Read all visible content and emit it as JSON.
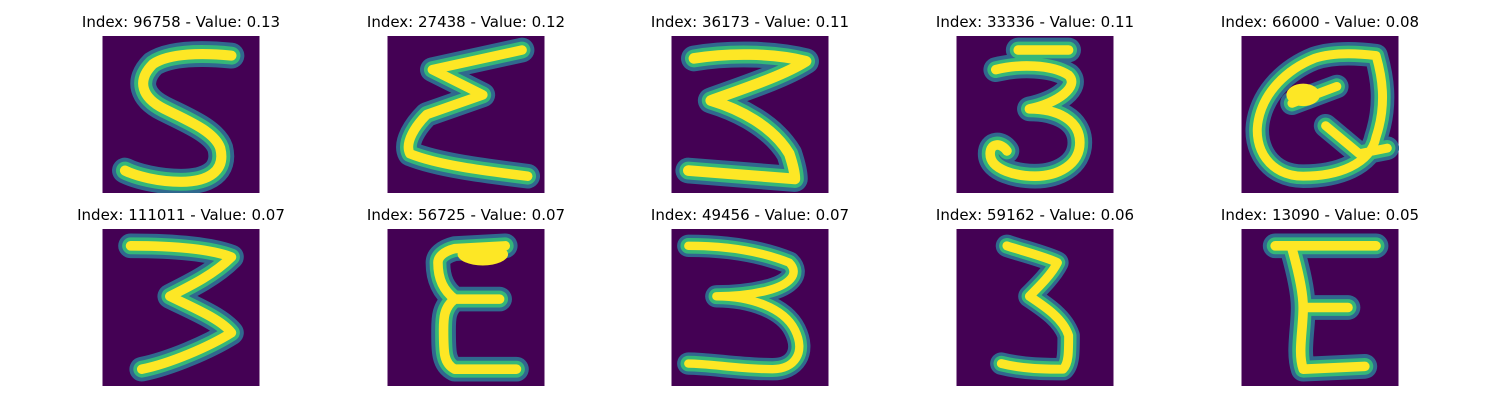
{
  "colors": {
    "background": "#440154",
    "stroke_outer": "#30688e",
    "stroke_mid": "#35b779",
    "stroke_core": "#fde725"
  },
  "panels": [
    {
      "title": "Index: 96758 - Value: 0.13",
      "index": "96758",
      "value": 0.13,
      "shape": "5"
    },
    {
      "title": "Index: 27438 - Value: 0.12",
      "index": "27438",
      "value": 0.12,
      "shape": "sigma"
    },
    {
      "title": "Index: 36173 - Value: 0.11",
      "index": "36173",
      "value": 0.11,
      "shape": "3"
    },
    {
      "title": "Index: 33336 - Value: 0.11",
      "index": "33336",
      "value": 0.11,
      "shape": "3"
    },
    {
      "title": "Index: 66000 - Value: 0.08",
      "index": "66000",
      "value": 0.08,
      "shape": "Q"
    },
    {
      "title": "Index: 111011 - Value: 0.07",
      "index": "111011",
      "value": 0.07,
      "shape": "3"
    },
    {
      "title": "Index: 56725 - Value: 0.07",
      "index": "56725",
      "value": 0.07,
      "shape": "E"
    },
    {
      "title": "Index: 49456 - Value: 0.07",
      "index": "49456",
      "value": 0.07,
      "shape": "3"
    },
    {
      "title": "Index: 59162 - Value: 0.06",
      "index": "59162",
      "value": 0.06,
      "shape": "3"
    },
    {
      "title": "Index: 13090 - Value: 0.05",
      "index": "13090",
      "value": 0.05,
      "shape": "E"
    }
  ]
}
